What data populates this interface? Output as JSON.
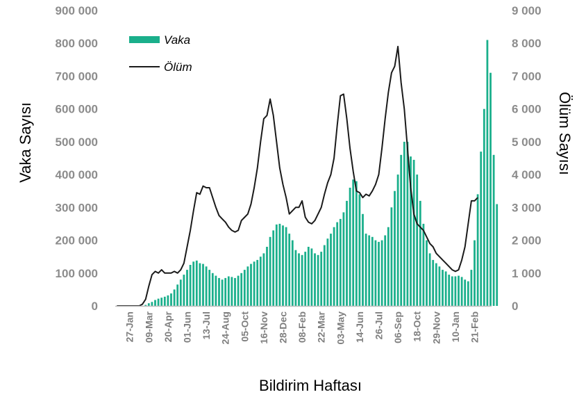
{
  "chart_data": {
    "type": "bar",
    "xlabel": "Bildirim Haftası",
    "ylabel_left": "Vaka Sayısı",
    "ylabel_right": "Ölüm Sayısı",
    "ylim_left": [
      0,
      900000
    ],
    "ylim_right": [
      0,
      9000
    ],
    "yticks_left": [
      "0",
      "100 000",
      "200 000",
      "300 000",
      "400 000",
      "500 000",
      "600 000",
      "700 000",
      "800 000",
      "900 000"
    ],
    "yticks_right": [
      "0",
      "1 000",
      "2 000",
      "3 000",
      "4 000",
      "5 000",
      "6 000",
      "7 000",
      "8 000",
      "9 000"
    ],
    "x_tick_labels": [
      {
        "index": 4,
        "label": "27-Jan"
      },
      {
        "index": 10,
        "label": "09-Mar"
      },
      {
        "index": 16,
        "label": "20-Apr"
      },
      {
        "index": 22,
        "label": "01-Jun"
      },
      {
        "index": 28,
        "label": "13-Jul"
      },
      {
        "index": 34,
        "label": "24-Aug"
      },
      {
        "index": 40,
        "label": "05-Oct"
      },
      {
        "index": 46,
        "label": "16-Nov"
      },
      {
        "index": 52,
        "label": "28-Dec"
      },
      {
        "index": 58,
        "label": "08-Feb"
      },
      {
        "index": 64,
        "label": "22-Mar"
      },
      {
        "index": 70,
        "label": "03-May"
      },
      {
        "index": 76,
        "label": "14-Jun"
      },
      {
        "index": 82,
        "label": "26-Jul"
      },
      {
        "index": 88,
        "label": "06-Sep"
      },
      {
        "index": 94,
        "label": "18-Oct"
      },
      {
        "index": 100,
        "label": "29-Nov"
      },
      {
        "index": 106,
        "label": "10-Jan"
      },
      {
        "index": 112,
        "label": "21-Feb"
      }
    ],
    "legend_position": "top-left",
    "grid": false,
    "series": [
      {
        "name": "Vaka",
        "axis": "left",
        "color": "#1aaf8b",
        "values": [
          0,
          0,
          0,
          0,
          0,
          0,
          0,
          0,
          0,
          3000,
          8000,
          12000,
          18000,
          22000,
          25000,
          28000,
          32000,
          38000,
          50000,
          65000,
          80000,
          95000,
          110000,
          125000,
          135000,
          138000,
          130000,
          128000,
          120000,
          110000,
          100000,
          92000,
          85000,
          80000,
          85000,
          90000,
          88000,
          85000,
          92000,
          100000,
          110000,
          120000,
          128000,
          135000,
          140000,
          150000,
          160000,
          180000,
          210000,
          230000,
          248000,
          250000,
          245000,
          240000,
          220000,
          200000,
          170000,
          160000,
          155000,
          165000,
          180000,
          175000,
          160000,
          155000,
          165000,
          185000,
          205000,
          220000,
          240000,
          255000,
          265000,
          285000,
          320000,
          360000,
          385000,
          380000,
          340000,
          280000,
          220000,
          215000,
          210000,
          200000,
          195000,
          200000,
          215000,
          240000,
          300000,
          350000,
          400000,
          460000,
          500000,
          500000,
          455000,
          445000,
          400000,
          320000,
          250000,
          200000,
          160000,
          140000,
          130000,
          120000,
          110000,
          105000,
          95000,
          90000,
          90000,
          92000,
          88000,
          80000,
          75000,
          110000,
          200000,
          340000,
          470000,
          600000,
          810000,
          710000,
          460000,
          310000
        ]
      },
      {
        "name": "Ölüm",
        "axis": "right",
        "color": "#1a1a1a",
        "values": [
          0,
          0,
          0,
          0,
          0,
          0,
          0,
          0,
          50,
          200,
          600,
          950,
          1050,
          1000,
          1100,
          1000,
          1000,
          1000,
          1050,
          1000,
          1100,
          1300,
          1800,
          2300,
          2900,
          3450,
          3400,
          3650,
          3600,
          3600,
          3300,
          3000,
          2750,
          2650,
          2550,
          2400,
          2300,
          2250,
          2300,
          2600,
          2700,
          2800,
          3100,
          3600,
          4200,
          5000,
          5700,
          5800,
          6300,
          5800,
          5000,
          4200,
          3700,
          3300,
          2800,
          2900,
          3000,
          3000,
          3200,
          2700,
          2550,
          2500,
          2600,
          2800,
          3000,
          3400,
          3750,
          4000,
          4500,
          5500,
          6400,
          6450,
          5700,
          4800,
          4100,
          3500,
          3450,
          3300,
          3400,
          3350,
          3500,
          3700,
          4000,
          4800,
          5700,
          6500,
          7100,
          7300,
          7900,
          6800,
          6000,
          4800,
          3600,
          2800,
          2500,
          2400,
          2300,
          2100,
          1900,
          1800,
          1600,
          1500,
          1400,
          1300,
          1200,
          1100,
          1050,
          1100,
          1400,
          1800,
          2500,
          3200,
          3200,
          3300
        ]
      }
    ]
  }
}
